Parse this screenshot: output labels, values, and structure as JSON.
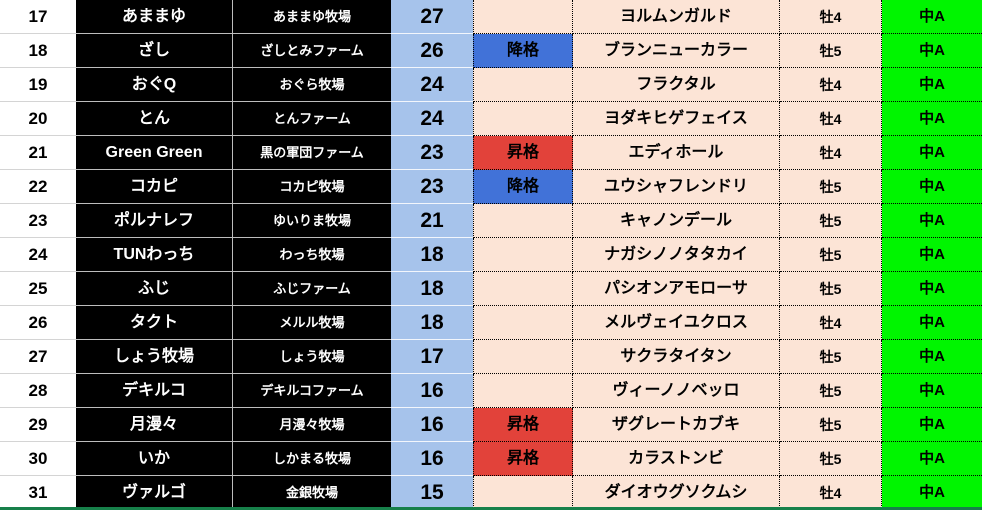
{
  "colors": {
    "score_col_bg": "#A6C3EB",
    "data_bg": "#FCE4D6",
    "class_bg": "#00F500",
    "demote_bg": "#4172D8",
    "promote_bg": "#E2423A",
    "owner_col_bg": "#000000",
    "bottom_line_green": "#17804A"
  },
  "status_labels": {
    "demote": "降格",
    "promote": "昇格"
  },
  "rows": [
    {
      "rank": "17",
      "owner": "あままゆ",
      "farm": "あままゆ牧場",
      "score": "27",
      "status": "",
      "status_type": "none",
      "horse": "ヨルムンガルド",
      "sex_age": "牡4",
      "class": "中A"
    },
    {
      "rank": "18",
      "owner": "ざし",
      "farm": "ざしとみファーム",
      "score": "26",
      "status": "降格",
      "status_type": "demote",
      "horse": "ブランニューカラー",
      "sex_age": "牡5",
      "class": "中A"
    },
    {
      "rank": "19",
      "owner": "おぐQ",
      "farm": "おぐら牧場",
      "score": "24",
      "status": "",
      "status_type": "none",
      "horse": "フラクタル",
      "sex_age": "牡4",
      "class": "中A"
    },
    {
      "rank": "20",
      "owner": "とん",
      "farm": "とんファーム",
      "score": "24",
      "status": "",
      "status_type": "none",
      "horse": "ヨダキヒゲフェイス",
      "sex_age": "牡4",
      "class": "中A"
    },
    {
      "rank": "21",
      "owner": "Green Green",
      "farm": "黒の軍団ファーム",
      "score": "23",
      "status": "昇格",
      "status_type": "promote",
      "horse": "エディホール",
      "sex_age": "牡4",
      "class": "中A"
    },
    {
      "rank": "22",
      "owner": "コカピ",
      "farm": "コカピ牧場",
      "score": "23",
      "status": "降格",
      "status_type": "demote",
      "horse": "ユウシャフレンドリ",
      "sex_age": "牡5",
      "class": "中A"
    },
    {
      "rank": "23",
      "owner": "ポルナレフ",
      "farm": "ゆいりま牧場",
      "score": "21",
      "status": "",
      "status_type": "none",
      "horse": "キャノンデール",
      "sex_age": "牡5",
      "class": "中A"
    },
    {
      "rank": "24",
      "owner": "TUNわっち",
      "farm": "わっち牧場",
      "score": "18",
      "status": "",
      "status_type": "none",
      "horse": "ナガシノノタタカイ",
      "sex_age": "牡5",
      "class": "中A"
    },
    {
      "rank": "25",
      "owner": "ふじ",
      "farm": "ふじファーム",
      "score": "18",
      "status": "",
      "status_type": "none",
      "horse": "パシオンアモローサ",
      "sex_age": "牡5",
      "class": "中A"
    },
    {
      "rank": "26",
      "owner": "タクト",
      "farm": "メルル牧場",
      "score": "18",
      "status": "",
      "status_type": "none",
      "horse": "メルヴェイユクロス",
      "sex_age": "牡4",
      "class": "中A"
    },
    {
      "rank": "27",
      "owner": "しょう牧場",
      "farm": "しょう牧場",
      "score": "17",
      "status": "",
      "status_type": "none",
      "horse": "サクラタイタン",
      "sex_age": "牡5",
      "class": "中A"
    },
    {
      "rank": "28",
      "owner": "デキルコ",
      "farm": "デキルコファーム",
      "score": "16",
      "status": "",
      "status_type": "none",
      "horse": "ヴィーノノベッロ",
      "sex_age": "牡5",
      "class": "中A"
    },
    {
      "rank": "29",
      "owner": "月漫々",
      "farm": "月漫々牧場",
      "score": "16",
      "status": "昇格",
      "status_type": "promote",
      "horse": "ザグレートカブキ",
      "sex_age": "牡5",
      "class": "中A"
    },
    {
      "rank": "30",
      "owner": "いか",
      "farm": "しかまる牧場",
      "score": "16",
      "status": "昇格",
      "status_type": "promote",
      "horse": "カラストンビ",
      "sex_age": "牡5",
      "class": "中A"
    },
    {
      "rank": "31",
      "owner": "ヴァルゴ",
      "farm": "金銀牧場",
      "score": "15",
      "status": "",
      "status_type": "none",
      "horse": "ダイオウグソクムシ",
      "sex_age": "牡4",
      "class": "中A"
    }
  ]
}
